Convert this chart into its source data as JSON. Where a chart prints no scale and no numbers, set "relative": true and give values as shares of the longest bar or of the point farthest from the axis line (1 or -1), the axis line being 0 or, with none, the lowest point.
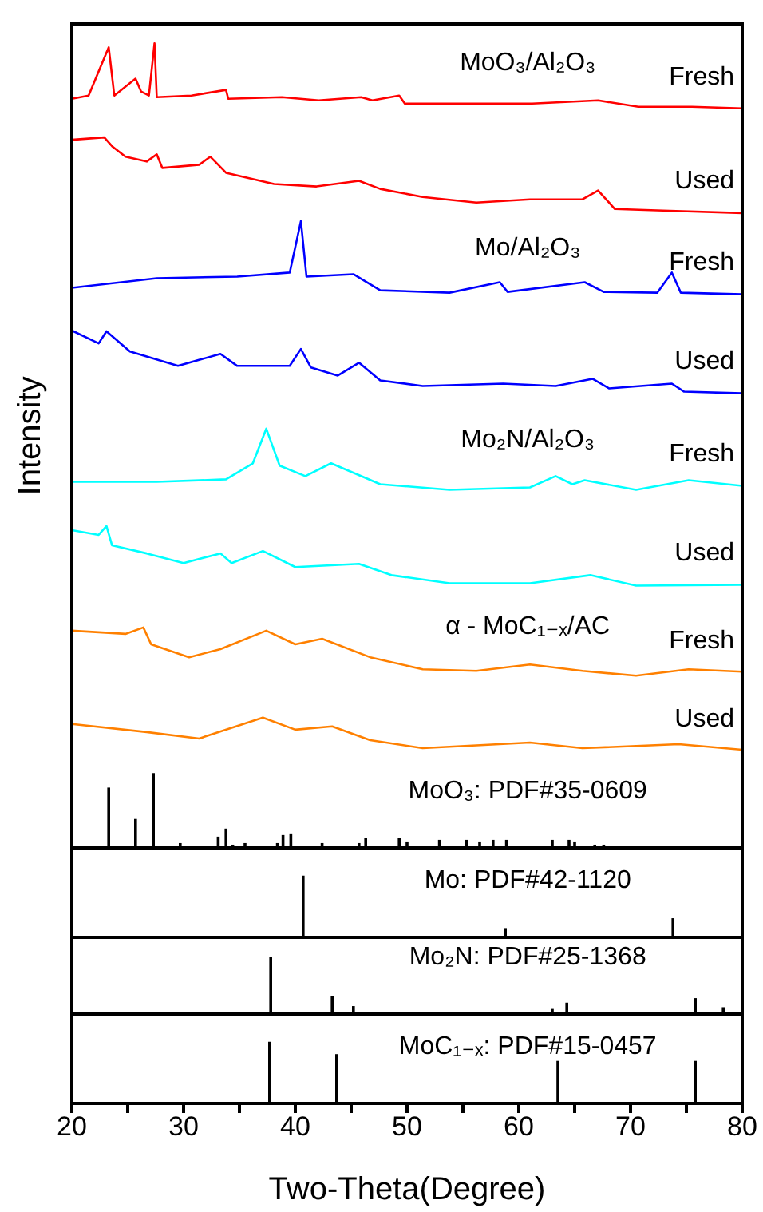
{
  "chart_data": [
    {
      "type": "line",
      "relative": true,
      "ylabel": "Intensity",
      "xlim": [
        20,
        80
      ],
      "tick_labels": false,
      "annotations": [
        "MoO₃/Al₂O₃",
        "Mo/Al₂O₃",
        "Mo₂N/Al₂O₃",
        "α - MoC₁₋ₓ/AC"
      ],
      "series": [
        {
          "name": "Fresh",
          "color": "#ff0000",
          "x": [
            20,
            21.5,
            23.3,
            23.8,
            25.7,
            26.2,
            26.9,
            27.4,
            27.6,
            30.7,
            33.8,
            34.0,
            38.8,
            42.1,
            45.9,
            46.9,
            49.3,
            49.8,
            56.4,
            61.2,
            67.1,
            70.7,
            75.5,
            80
          ],
          "values": [
            0.931,
            0.935,
            0.995,
            0.935,
            0.956,
            0.94,
            0.935,
            1,
            0.933,
            0.935,
            0.942,
            0.931,
            0.933,
            0.929,
            0.933,
            0.929,
            0.935,
            0.925,
            0.925,
            0.925,
            0.929,
            0.921,
            0.921,
            0.919
          ]
        },
        {
          "name": "Used",
          "color": "#ff0000",
          "x": [
            20,
            22.9,
            23.6,
            24.8,
            26.7,
            27.6,
            28.1,
            31.4,
            32.4,
            33.8,
            38.1,
            41.9,
            45.7,
            47.6,
            51.4,
            56.2,
            61,
            65.7,
            67.1,
            68.6,
            72.9,
            80
          ],
          "values": [
            0.88,
            0.883,
            0.872,
            0.859,
            0.853,
            0.862,
            0.845,
            0.849,
            0.859,
            0.839,
            0.825,
            0.822,
            0.829,
            0.819,
            0.809,
            0.802,
            0.806,
            0.806,
            0.817,
            0.794,
            0.792,
            0.789
          ]
        },
        {
          "name": "Fresh",
          "color": "#0000ff",
          "x": [
            20,
            27.6,
            34.8,
            39.5,
            40.5,
            41,
            45.2,
            47.6,
            53.8,
            58.3,
            59,
            65.9,
            67.6,
            72.4,
            73.7,
            74.5,
            80
          ],
          "values": [
            0.696,
            0.708,
            0.71,
            0.715,
            0.779,
            0.71,
            0.713,
            0.693,
            0.69,
            0.703,
            0.691,
            0.703,
            0.691,
            0.69,
            0.715,
            0.69,
            0.688
          ]
        },
        {
          "name": "Used",
          "color": "#0000ff",
          "x": [
            20,
            22.4,
            23.1,
            25.2,
            29.5,
            33.3,
            34.8,
            39.5,
            40.5,
            41.4,
            43.8,
            45.7,
            47.6,
            51.4,
            58.6,
            63.3,
            66.6,
            68.1,
            73.7,
            74.8,
            80
          ],
          "values": [
            0.643,
            0.627,
            0.642,
            0.617,
            0.599,
            0.614,
            0.599,
            0.599,
            0.62,
            0.597,
            0.587,
            0.603,
            0.581,
            0.574,
            0.577,
            0.574,
            0.583,
            0.571,
            0.577,
            0.567,
            0.565
          ]
        },
        {
          "name": "Fresh",
          "color": "#00ffff",
          "x": [
            20,
            27.6,
            33.8,
            36.2,
            37.4,
            38.6,
            40.9,
            43.2,
            47.6,
            53.8,
            61,
            63.3,
            64.8,
            65.9,
            70.5,
            75.2,
            80
          ],
          "values": [
            0.455,
            0.455,
            0.458,
            0.478,
            0.521,
            0.475,
            0.462,
            0.478,
            0.452,
            0.445,
            0.448,
            0.462,
            0.452,
            0.457,
            0.445,
            0.457,
            0.45
          ]
        },
        {
          "name": "Used",
          "color": "#00ffff",
          "x": [
            20,
            22.4,
            23.1,
            23.6,
            26.7,
            30,
            33.3,
            34.3,
            37.1,
            40,
            45.7,
            48.6,
            53.8,
            61,
            66.4,
            70.5,
            80
          ],
          "values": [
            0.395,
            0.389,
            0.4,
            0.376,
            0.366,
            0.354,
            0.366,
            0.354,
            0.369,
            0.349,
            0.353,
            0.339,
            0.329,
            0.329,
            0.339,
            0.326,
            0.327
          ]
        },
        {
          "name": "Fresh",
          "color": "#ff8000",
          "x": [
            20,
            24.8,
            26.4,
            27.1,
            30.5,
            33.3,
            37.4,
            40,
            42.4,
            46.7,
            51.4,
            56.2,
            61,
            65.7,
            70.5,
            75.2,
            80
          ],
          "values": [
            0.27,
            0.266,
            0.274,
            0.253,
            0.237,
            0.247,
            0.27,
            0.253,
            0.26,
            0.237,
            0.222,
            0.22,
            0.228,
            0.22,
            0.214,
            0.222,
            0.219
          ]
        },
        {
          "name": "Used",
          "color": "#ff8000",
          "x": [
            20,
            26.7,
            31.4,
            37.1,
            40,
            43.3,
            46.7,
            51.4,
            61,
            65.7,
            74.3,
            80
          ],
          "values": [
            0.154,
            0.144,
            0.136,
            0.162,
            0.147,
            0.151,
            0.134,
            0.124,
            0.131,
            0.124,
            0.129,
            0.122
          ]
        },
        {
          "type": "bar",
          "name": "MoO₃: PDF#35-0609",
          "color": "#000000",
          "x": [
            23.3,
            25.7,
            27.3,
            29.7,
            33.1,
            33.8,
            34.4,
            35.5,
            38.4,
            38.9,
            39.6,
            42.4,
            45.7,
            46.3,
            49.3,
            50.0,
            52.9,
            55.3,
            56.5,
            57.7,
            58.9,
            63.0,
            64.5,
            65.0,
            66.8,
            67.6
          ],
          "values": [
            0.075,
            0.036,
            0.093,
            0.006,
            0.014,
            0.024,
            0.004,
            0.006,
            0.006,
            0.016,
            0.018,
            0.006,
            0.006,
            0.012,
            0.012,
            0.008,
            0.01,
            0.01,
            0.008,
            0.01,
            0.01,
            0.01,
            0.01,
            0.008,
            0.004,
            0.004
          ]
        }
      ]
    },
    {
      "type": "bar",
      "relative": true,
      "xlim": [
        20,
        80
      ],
      "tick_labels": false,
      "series": [
        {
          "name": "Mo: PDF#42-1120",
          "color": "#000000",
          "x": [
            40.7,
            58.8,
            73.8
          ],
          "values": [
            1,
            0.15,
            0.31
          ]
        }
      ]
    },
    {
      "type": "bar",
      "relative": true,
      "xlim": [
        20,
        80
      ],
      "tick_labels": false,
      "series": [
        {
          "name": "Mo₂N: PDF#25-1368",
          "color": "#000000",
          "x": [
            37.8,
            43.3,
            45.2,
            63.0,
            64.3,
            75.8,
            78.3
          ],
          "values": [
            1,
            0.32,
            0.14,
            0.09,
            0.2,
            0.28,
            0.12
          ]
        }
      ]
    },
    {
      "type": "bar",
      "relative": true,
      "xlim": [
        20,
        80
      ],
      "tick_labels": "x",
      "xlabel": "Two-Theta(Degree)",
      "xticks": [
        20,
        {
          "value": 25,
          "label": null
        },
        30,
        {
          "value": 35,
          "label": null
        },
        40,
        {
          "value": 45,
          "label": null
        },
        50,
        {
          "value": 55,
          "label": null
        },
        60,
        {
          "value": 65,
          "label": null
        },
        70,
        {
          "value": 75,
          "label": null
        },
        80
      ],
      "series": [
        {
          "name": "MoC₁₋ₓ: PDF#15-0457",
          "color": "#000000",
          "x": [
            37.7,
            43.7,
            63.5,
            75.8
          ],
          "values": [
            1,
            0.8,
            0.69,
            0.69
          ]
        }
      ]
    }
  ]
}
